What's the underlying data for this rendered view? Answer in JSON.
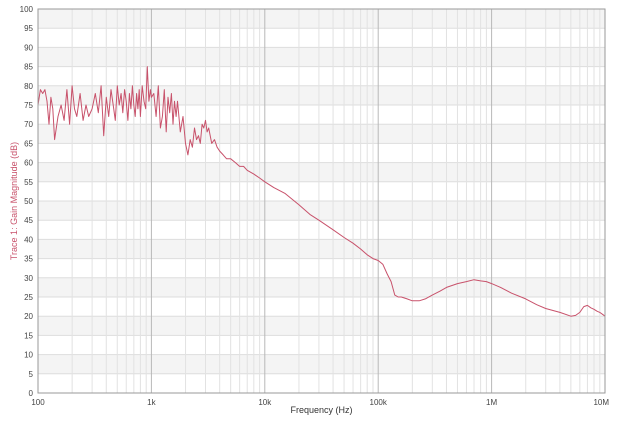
{
  "chart_data": {
    "type": "line",
    "title": "",
    "xlabel": "Frequency (Hz)",
    "ylabel": "Trace 1: Gain Magnitude (dB)",
    "x_scale": "log",
    "xlim": [
      100,
      10000000
    ],
    "ylim": [
      0,
      100
    ],
    "grid": true,
    "legend": "none",
    "x_ticks": [
      {
        "value": 100,
        "label": "100"
      },
      {
        "value": 1000,
        "label": "1k"
      },
      {
        "value": 10000,
        "label": "10k"
      },
      {
        "value": 100000,
        "label": "100k"
      },
      {
        "value": 1000000,
        "label": "1M"
      },
      {
        "value": 10000000,
        "label": "10M"
      }
    ],
    "y_ticks": [
      {
        "value": 0,
        "label": "0"
      },
      {
        "value": 5,
        "label": "5"
      },
      {
        "value": 10,
        "label": "10"
      },
      {
        "value": 15,
        "label": "15"
      },
      {
        "value": 20,
        "label": "20"
      },
      {
        "value": 25,
        "label": "25"
      },
      {
        "value": 30,
        "label": "30"
      },
      {
        "value": 35,
        "label": "35"
      },
      {
        "value": 40,
        "label": "40"
      },
      {
        "value": 45,
        "label": "45"
      },
      {
        "value": 50,
        "label": "50"
      },
      {
        "value": 55,
        "label": "55"
      },
      {
        "value": 60,
        "label": "60"
      },
      {
        "value": 65,
        "label": "65"
      },
      {
        "value": 70,
        "label": "70"
      },
      {
        "value": 75,
        "label": "75"
      },
      {
        "value": 80,
        "label": "80"
      },
      {
        "value": 85,
        "label": "85"
      },
      {
        "value": 90,
        "label": "90"
      },
      {
        "value": 95,
        "label": "95"
      },
      {
        "value": 100,
        "label": "100"
      }
    ],
    "series": [
      {
        "color": "#c8526b",
        "x": [
          100,
          105,
          110,
          115,
          120,
          125,
          130,
          135,
          140,
          150,
          160,
          170,
          180,
          190,
          200,
          210,
          220,
          235,
          250,
          265,
          280,
          300,
          320,
          340,
          360,
          380,
          400,
          420,
          440,
          460,
          480,
          500,
          520,
          540,
          560,
          580,
          600,
          620,
          640,
          660,
          680,
          700,
          720,
          740,
          760,
          780,
          800,
          830,
          860,
          890,
          920,
          950,
          980,
          1000,
          1050,
          1100,
          1150,
          1200,
          1250,
          1300,
          1350,
          1400,
          1450,
          1500,
          1550,
          1600,
          1650,
          1700,
          1800,
          1900,
          2000,
          2100,
          2200,
          2300,
          2400,
          2500,
          2600,
          2700,
          2800,
          2900,
          3000,
          3100,
          3200,
          3400,
          3600,
          3800,
          4000,
          4300,
          4600,
          5000,
          5500,
          6000,
          6500,
          7000,
          8000,
          9000,
          10000,
          12000,
          15000,
          20000,
          25000,
          30000,
          40000,
          50000,
          60000,
          70000,
          80000,
          90000,
          100000,
          110000,
          120000,
          130000,
          140000,
          150000,
          160000,
          180000,
          200000,
          230000,
          260000,
          300000,
          350000,
          400000,
          500000,
          600000,
          700000,
          800000,
          900000,
          1000000,
          1200000,
          1500000,
          2000000,
          2500000,
          3000000,
          4000000,
          5000000,
          5500000,
          6000000,
          6500000,
          7000000,
          7500000,
          8000000,
          8500000,
          9000000,
          9500000,
          10000000
        ],
        "y": [
          75,
          79,
          78,
          79,
          76,
          70,
          77,
          74,
          66,
          72,
          75,
          71,
          79,
          70,
          80,
          74,
          72,
          78,
          71,
          75,
          72,
          74,
          78,
          73,
          80,
          67,
          77,
          72,
          79,
          75,
          71,
          80,
          75,
          78,
          73,
          79,
          76,
          71,
          78,
          74,
          80,
          75,
          72,
          78,
          74,
          79,
          72,
          80,
          76,
          74,
          85,
          76,
          79,
          77,
          78,
          72,
          80,
          69,
          72,
          79,
          68,
          77,
          73,
          78,
          70,
          76,
          72,
          76,
          68,
          72,
          65,
          62,
          66,
          64,
          69,
          66,
          67,
          65,
          70,
          69,
          71,
          68,
          69,
          65,
          66,
          64,
          63,
          62,
          61,
          61,
          60,
          59,
          59,
          58,
          57,
          56,
          55,
          53.5,
          52,
          49,
          46.5,
          45,
          42.5,
          40.5,
          39,
          37.5,
          36,
          35,
          34.5,
          33.5,
          31,
          29,
          25.5,
          25,
          25,
          24.5,
          24,
          24,
          24.5,
          25.5,
          26.5,
          27.5,
          28.5,
          29,
          29.5,
          29.2,
          29,
          28.5,
          27.5,
          26,
          24.5,
          23,
          22,
          21,
          20,
          20.2,
          21,
          22.5,
          22.8,
          22.2,
          21.8,
          21.3,
          21,
          20.5,
          20
        ]
      }
    ]
  }
}
